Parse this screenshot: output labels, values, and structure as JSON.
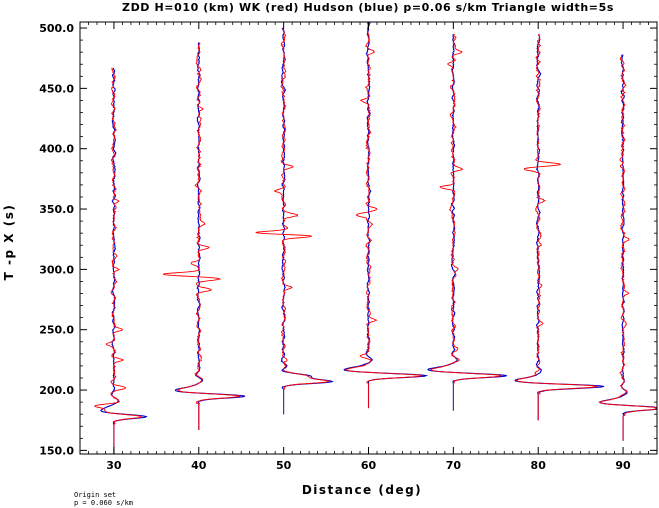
{
  "chart_data": {
    "type": "line",
    "title": "ZDD H=010 (km) WK (red) Hudson (blue) p=0.06 s/km Triangle width=5s",
    "xlabel": "Distance (deg)",
    "ylabel": "T -p X (s)",
    "xlim": [
      26,
      94
    ],
    "ylim": [
      147,
      505
    ],
    "x_ticks": [
      30,
      40,
      50,
      60,
      70,
      80,
      90
    ],
    "x_tick_labels": [
      "30",
      "40",
      "50",
      "60",
      "70",
      "80",
      "90"
    ],
    "y_ticks": [
      150,
      200,
      250,
      300,
      350,
      400,
      450,
      500
    ],
    "y_tick_labels": [
      "150.0",
      "200.0",
      "250.0",
      "300.0",
      "350.0",
      "400.0",
      "450.0",
      "500.0"
    ],
    "grid": false,
    "series_colors": {
      "WK": "#ff0000",
      "Hudson": "#0000cc"
    },
    "traces": [
      {
        "distance": 30,
        "start": 147,
        "end": 467,
        "main_arrival": 178,
        "main_amp_deg": 4,
        "main_secondary_amp_deg": -1.5,
        "red_extra_events": [
          [
            187,
            -2
          ],
          [
            202,
            1.5
          ],
          [
            225,
            1.2
          ],
          [
            238,
            -0.8
          ],
          [
            250,
            1
          ],
          [
            300,
            0.6
          ],
          [
            357,
            0.5
          ]
        ]
      },
      {
        "distance": 40,
        "start": 167,
        "end": 488,
        "main_arrival": 195,
        "main_amp_deg": 5.5,
        "main_secondary_amp_deg": -3,
        "red_extra_events": [
          [
            296,
            -4
          ],
          [
            292,
            2.5
          ],
          [
            283,
            1.5
          ],
          [
            318,
            1
          ],
          [
            305,
            -1
          ],
          [
            338,
            0.8
          ],
          [
            370,
            -0.5
          ],
          [
            433,
            0.6
          ]
        ]
      },
      {
        "distance": 50,
        "start": 180,
        "end": 500,
        "main_arrival": 207,
        "main_amp_deg": 5.5,
        "main_secondary_amp_deg": 3,
        "red_extra_events": [
          [
            330,
            -4
          ],
          [
            328,
            4
          ],
          [
            345,
            1.5
          ],
          [
            285,
            1
          ],
          [
            365,
            -1
          ],
          [
            385,
            0.8
          ],
          [
            225,
            0.6
          ]
        ]
      },
      {
        "distance": 60,
        "start": 185,
        "end": 505,
        "main_arrival": 212,
        "main_amp_deg": 7,
        "main_secondary_amp_deg": -3,
        "red_extra_events": [
          [
            345,
            -1.5
          ],
          [
            350,
            1.2
          ],
          [
            258,
            1
          ],
          [
            228,
            -0.8
          ],
          [
            440,
            -0.8
          ],
          [
            480,
            0.6
          ]
        ]
      },
      {
        "distance": 70,
        "start": 183,
        "end": 495,
        "main_arrival": 212,
        "main_amp_deg": 6.5,
        "main_secondary_amp_deg": -3,
        "red_extra_events": [
          [
            368,
            -1.5
          ],
          [
            383,
            1
          ],
          [
            480,
            1
          ],
          [
            470,
            -0.8
          ],
          [
            234,
            0.6
          ],
          [
            300,
            0.5
          ]
        ]
      },
      {
        "distance": 80,
        "start": 175,
        "end": 495,
        "main_arrival": 203,
        "main_amp_deg": 8,
        "main_secondary_amp_deg": -3,
        "red_extra_events": [
          [
            387,
            2.5
          ],
          [
            383,
            -1.5
          ],
          [
            357,
            0.8
          ],
          [
            287,
            0.5
          ],
          [
            255,
            0.5
          ],
          [
            215,
            -0.8
          ]
        ]
      },
      {
        "distance": 90,
        "start": 158,
        "end": 478,
        "main_arrival": 185,
        "main_amp_deg": 5,
        "main_secondary_amp_deg": -3,
        "red_extra_events": [
          [
            325,
            0.6
          ],
          [
            280,
            0.5
          ],
          [
            305,
            -0.4
          ]
        ]
      }
    ]
  },
  "footer": {
    "line1": "Origin set",
    "line2": "p = 0.060 s/km"
  }
}
